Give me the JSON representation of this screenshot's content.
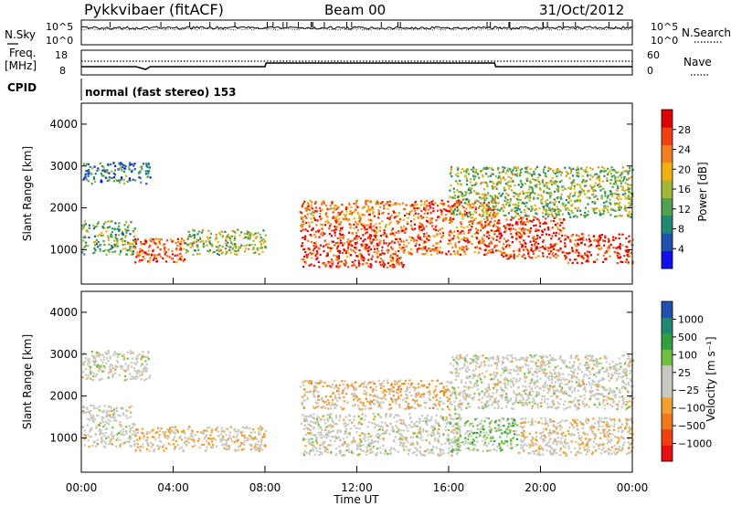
{
  "header": {
    "radar": "Pykkvibaer (fitACF)",
    "beam": "Beam 00",
    "date": "31/Oct/2012"
  },
  "noise_panel": {
    "left_label": "N.Sky",
    "right_label": "N.Search",
    "ticks": [
      "10^5",
      "10^0"
    ]
  },
  "freq_panel": {
    "left_label_top": "Freq.",
    "left_label_unit": "[MHz]",
    "left_ticks": [
      "18",
      "8"
    ],
    "right_label": "Nave",
    "right_ticks": [
      "60",
      "0"
    ]
  },
  "cpid": {
    "label": "CPID",
    "mode": "normal (fast stereo) 153"
  },
  "chart_data": [
    {
      "type": "heatmap",
      "title": "",
      "xlabel": "Time UT",
      "ylabel": "Slant Range [km]",
      "xlim": [
        0,
        24
      ],
      "ylim": [
        180,
        4500
      ],
      "x_ticks": [
        "00:00",
        "04:00",
        "08:00",
        "12:00",
        "16:00",
        "20:00",
        "00:00"
      ],
      "y_ticks": [
        "1000",
        "2000",
        "3000",
        "4000"
      ],
      "colorbar": {
        "label": "Power [dB]",
        "ticks": [
          "28",
          "24",
          "20",
          "16",
          "12",
          "8",
          "4"
        ],
        "range": [
          0,
          30
        ],
        "colors": [
          "#1010ee",
          "#2050b0",
          "#208870",
          "#50a050",
          "#a0b838",
          "#f0b010",
          "#f08020",
          "#f04010",
          "#e00000"
        ]
      },
      "bands": [
        {
          "t0": 0.0,
          "t1": 2.3,
          "r0": 900,
          "r1": 1700,
          "level": 12
        },
        {
          "t0": 2.3,
          "t1": 4.5,
          "r0": 700,
          "r1": 1300,
          "level": 24
        },
        {
          "t0": 4.5,
          "t1": 8.0,
          "r0": 900,
          "r1": 1500,
          "level": 14
        },
        {
          "t0": 0.0,
          "t1": 3.0,
          "r0": 2600,
          "r1": 3100,
          "level": 8
        },
        {
          "t0": 9.5,
          "t1": 14.0,
          "r0": 600,
          "r1": 1600,
          "level": 26
        },
        {
          "t0": 9.5,
          "t1": 14.0,
          "r0": 1600,
          "r1": 2200,
          "level": 22
        },
        {
          "t0": 14.0,
          "t1": 18.0,
          "r0": 900,
          "r1": 2200,
          "level": 24
        },
        {
          "t0": 18.0,
          "t1": 21.0,
          "r0": 800,
          "r1": 1800,
          "level": 26
        },
        {
          "t0": 21.0,
          "t1": 24.0,
          "r0": 700,
          "r1": 1400,
          "level": 27
        },
        {
          "t0": 16.0,
          "t1": 24.0,
          "r0": 1800,
          "r1": 3000,
          "level": 14
        }
      ]
    },
    {
      "type": "heatmap",
      "title": "",
      "xlabel": "Time UT",
      "ylabel": "Slant Range [km]",
      "xlim": [
        0,
        24
      ],
      "ylim": [
        180,
        4500
      ],
      "x_ticks": [
        "00:00",
        "04:00",
        "08:00",
        "12:00",
        "16:00",
        "20:00",
        "00:00"
      ],
      "y_ticks": [
        "1000",
        "2000",
        "3000",
        "4000"
      ],
      "colorbar": {
        "label": "Velocity [m s⁻¹]",
        "ticks": [
          "1000",
          "500",
          "100",
          "25",
          "−25",
          "−100",
          "−500",
          "−1000"
        ],
        "range": [
          -1000,
          1000
        ],
        "colors": [
          "#e81010",
          "#f04010",
          "#f07818",
          "#f0a030",
          "#c8c8c0",
          "#c8c8c0",
          "#70c040",
          "#30a040",
          "#208870",
          "#2050b0"
        ]
      },
      "bands": [
        {
          "t0": 0.0,
          "t1": 2.3,
          "r0": 800,
          "r1": 1800,
          "level": 0
        },
        {
          "t0": 2.3,
          "t1": 8.0,
          "r0": 700,
          "r1": 1300,
          "level": -150
        },
        {
          "t0": 0.0,
          "t1": 3.0,
          "r0": 2400,
          "r1": 3100,
          "level": 10
        },
        {
          "t0": 9.5,
          "t1": 16.5,
          "r0": 600,
          "r1": 1600,
          "level": 0
        },
        {
          "t0": 9.5,
          "t1": 16.0,
          "r0": 1700,
          "r1": 2400,
          "level": -200
        },
        {
          "t0": 16.0,
          "t1": 19.0,
          "r0": 700,
          "r1": 1500,
          "level": 250
        },
        {
          "t0": 19.0,
          "t1": 24.0,
          "r0": 600,
          "r1": 1500,
          "level": -120
        },
        {
          "t0": 16.0,
          "t1": 24.0,
          "r0": 1700,
          "r1": 3000,
          "level": 0
        }
      ]
    }
  ]
}
